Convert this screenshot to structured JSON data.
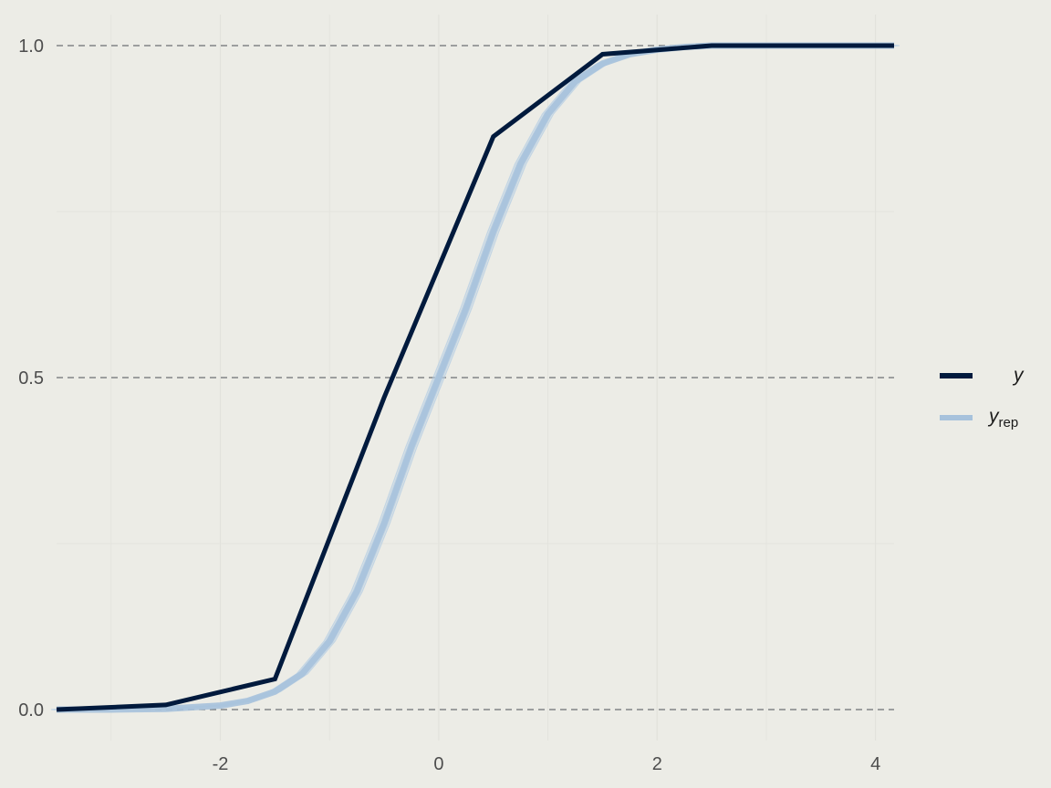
{
  "chart_data": {
    "type": "line",
    "title": "",
    "xlabel": "",
    "ylabel": "",
    "xlim": [
      -3.5,
      4.17
    ],
    "ylim": [
      0.0,
      1.0
    ],
    "x_ticks": [
      -2,
      0,
      2,
      4
    ],
    "x_tick_labels": [
      "-2",
      "0",
      "2",
      "4"
    ],
    "y_ticks": [
      0.0,
      0.5,
      1.0
    ],
    "y_tick_labels": [
      "0.0",
      "0.5",
      "1.0"
    ],
    "grid": true,
    "legend_position": "right",
    "series": [
      {
        "name": "y",
        "color": "#011a3d",
        "x": [
          -3.5,
          -2.5,
          -1.5,
          -0.5,
          0.5,
          1.5,
          2.5,
          3.5,
          4.17
        ],
        "y": [
          0.0,
          0.007,
          0.046,
          0.47,
          0.863,
          0.987,
          1.0,
          1.0,
          1.0
        ]
      },
      {
        "name": "y_rep",
        "legend_main": "y",
        "legend_sub": "rep",
        "color": "#a7c2dc",
        "x": [
          -3.5,
          -3.0,
          -2.5,
          -2.0,
          -1.75,
          -1.5,
          -1.25,
          -1.0,
          -0.75,
          -0.5,
          -0.25,
          0.0,
          0.25,
          0.5,
          0.75,
          1.0,
          1.25,
          1.5,
          1.75,
          2.0,
          2.25,
          2.5,
          3.0,
          3.5,
          4.17
        ],
        "y": [
          0.0,
          0.0,
          0.001,
          0.006,
          0.013,
          0.027,
          0.054,
          0.103,
          0.178,
          0.28,
          0.396,
          0.5,
          0.604,
          0.72,
          0.822,
          0.897,
          0.946,
          0.973,
          0.987,
          0.994,
          0.998,
          1.0,
          1.0,
          1.0,
          1.0
        ]
      }
    ]
  },
  "legend": {
    "items": [
      {
        "label": "y",
        "sub": ""
      },
      {
        "label": "y",
        "sub": "rep"
      }
    ]
  }
}
